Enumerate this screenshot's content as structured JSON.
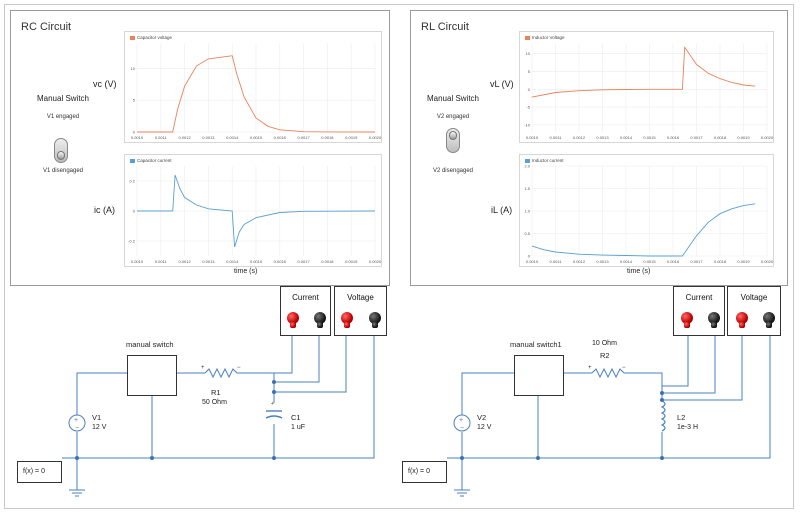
{
  "rc": {
    "title": "RC Circuit",
    "control_title": "Manual Switch",
    "engaged": "V1 engaged",
    "disengaged": "V1 disengaged",
    "plot_top": {
      "legend": "Capacitor voltage",
      "ylabel": "vc (V)",
      "color": "#e8825c",
      "ylim": [
        0,
        14
      ],
      "yticks": [
        "10",
        "5",
        "0"
      ],
      "xticks": [
        "0.0010",
        "0.0011",
        "0.0012",
        "0.0013",
        "0.0014",
        "0.0015",
        "0.0016",
        "0.0017",
        "0.0018",
        "0.0019",
        "0.0020"
      ]
    },
    "plot_bottom": {
      "legend": "Capacitor current",
      "ylabel": "ic (A)",
      "xlabel": "time (s)",
      "color": "#5a9fd4",
      "ylim": [
        -0.3,
        0.3
      ],
      "yticks": [
        "0.2",
        "0",
        "-0.2"
      ],
      "xticks": [
        "0.0010",
        "0.0011",
        "0.0012",
        "0.0013",
        "0.0014",
        "0.0015",
        "0.0016",
        "0.0017",
        "0.0018",
        "0.0019",
        "0.0020"
      ]
    },
    "scope_current": "Current",
    "scope_voltage": "Voltage",
    "switch_label": "manual switch",
    "source_name": "V1",
    "source_value": "12 V",
    "resistor_name": "R1",
    "resistor_value": "50 Ohm",
    "cap_name": "C1",
    "cap_value": "1 uF",
    "solver": "f(x) = 0"
  },
  "rl": {
    "title": "RL Circuit",
    "control_title": "Manual Switch",
    "engaged": "V2 engaged",
    "disengaged": "V2 disengaged",
    "plot_top": {
      "legend": "Inductor Voltage",
      "ylabel": "vL (V)",
      "color": "#e8825c",
      "ylim": [
        -12,
        13
      ],
      "yticks": [
        "10",
        "5",
        "0",
        "-5",
        "-10"
      ],
      "xticks": [
        "0.0010",
        "0.0011",
        "0.0012",
        "0.0013",
        "0.0014",
        "0.0015",
        "0.0016",
        "0.0017",
        "0.0018",
        "0.0019",
        "0.0020"
      ]
    },
    "plot_bottom": {
      "legend": "Inductor current",
      "ylabel": "iL (A)",
      "xlabel": "time (s)",
      "color": "#5a9fd4",
      "ylim": [
        0,
        2
      ],
      "yticks": [
        "2.0",
        "1.5",
        "1.0",
        "0.5",
        "0"
      ],
      "xticks": [
        "0.0010",
        "0.0011",
        "0.0012",
        "0.0013",
        "0.0014",
        "0.0015",
        "0.0016",
        "0.0017",
        "0.0018",
        "0.0019",
        "0.0020"
      ]
    },
    "scope_current": "Current",
    "scope_voltage": "Voltage",
    "switch_label": "manual switch1",
    "source_name": "V2",
    "source_value": "12 V",
    "resistor_name": "R2",
    "resistor_value": "10 Ohm",
    "ind_name": "L2",
    "ind_value": "1e-3 H",
    "solver": "f(x) = 0"
  },
  "chart_data": [
    {
      "type": "line",
      "title": "",
      "series": [
        {
          "name": "Capacitor voltage",
          "x": [
            0.001,
            0.00115,
            0.00117,
            0.0012,
            0.00125,
            0.0013,
            0.0014,
            0.00142,
            0.00145,
            0.0015,
            0.00155,
            0.0016,
            0.0017,
            0.0018,
            0.002
          ],
          "y": [
            0,
            0,
            3.5,
            7.2,
            10.4,
            11.5,
            12,
            9.0,
            5.5,
            2.2,
            0.9,
            0.35,
            0.05,
            0.01,
            0
          ]
        }
      ],
      "xlabel": "",
      "ylabel": "vc (V)",
      "ylim": [
        0,
        14
      ]
    },
    {
      "type": "line",
      "title": "",
      "series": [
        {
          "name": "Capacitor current",
          "x": [
            0.001,
            0.00115,
            0.00116,
            0.00118,
            0.0012,
            0.00125,
            0.0013,
            0.0014,
            0.00141,
            0.00143,
            0.00145,
            0.0015,
            0.0016,
            0.0017,
            0.002
          ],
          "y": [
            0,
            0,
            0.24,
            0.15,
            0.09,
            0.04,
            0.015,
            0,
            -0.24,
            -0.14,
            -0.09,
            -0.045,
            -0.01,
            -0.002,
            0
          ]
        }
      ],
      "xlabel": "time (s)",
      "ylabel": "ic (A)",
      "ylim": [
        -0.3,
        0.3
      ]
    },
    {
      "type": "line",
      "title": "",
      "series": [
        {
          "name": "Inductor Voltage",
          "x": [
            0.001,
            0.0011,
            0.0012,
            0.0013,
            0.0014,
            0.0015,
            0.00164,
            0.00165,
            0.0017,
            0.00175,
            0.0018,
            0.00185,
            0.0019,
            0.00195
          ],
          "y": [
            -2.2,
            -0.9,
            -0.4,
            -0.15,
            -0.05,
            0,
            0,
            11.8,
            7.0,
            4.5,
            3.0,
            1.9,
            1.2,
            0.9
          ]
        }
      ],
      "xlabel": "",
      "ylabel": "vL (V)",
      "ylim": [
        -12,
        13
      ]
    },
    {
      "type": "line",
      "title": "",
      "series": [
        {
          "name": "Inductor current",
          "x": [
            0.001,
            0.00105,
            0.0011,
            0.0012,
            0.0013,
            0.0014,
            0.0015,
            0.00164,
            0.0017,
            0.00175,
            0.0018,
            0.00185,
            0.0019,
            0.00195
          ],
          "y": [
            0.22,
            0.14,
            0.09,
            0.04,
            0.02,
            0.01,
            0,
            0,
            0.45,
            0.75,
            0.94,
            1.05,
            1.12,
            1.16
          ]
        }
      ],
      "xlabel": "time (s)",
      "ylabel": "iL (A)",
      "ylim": [
        0,
        2
      ]
    }
  ]
}
